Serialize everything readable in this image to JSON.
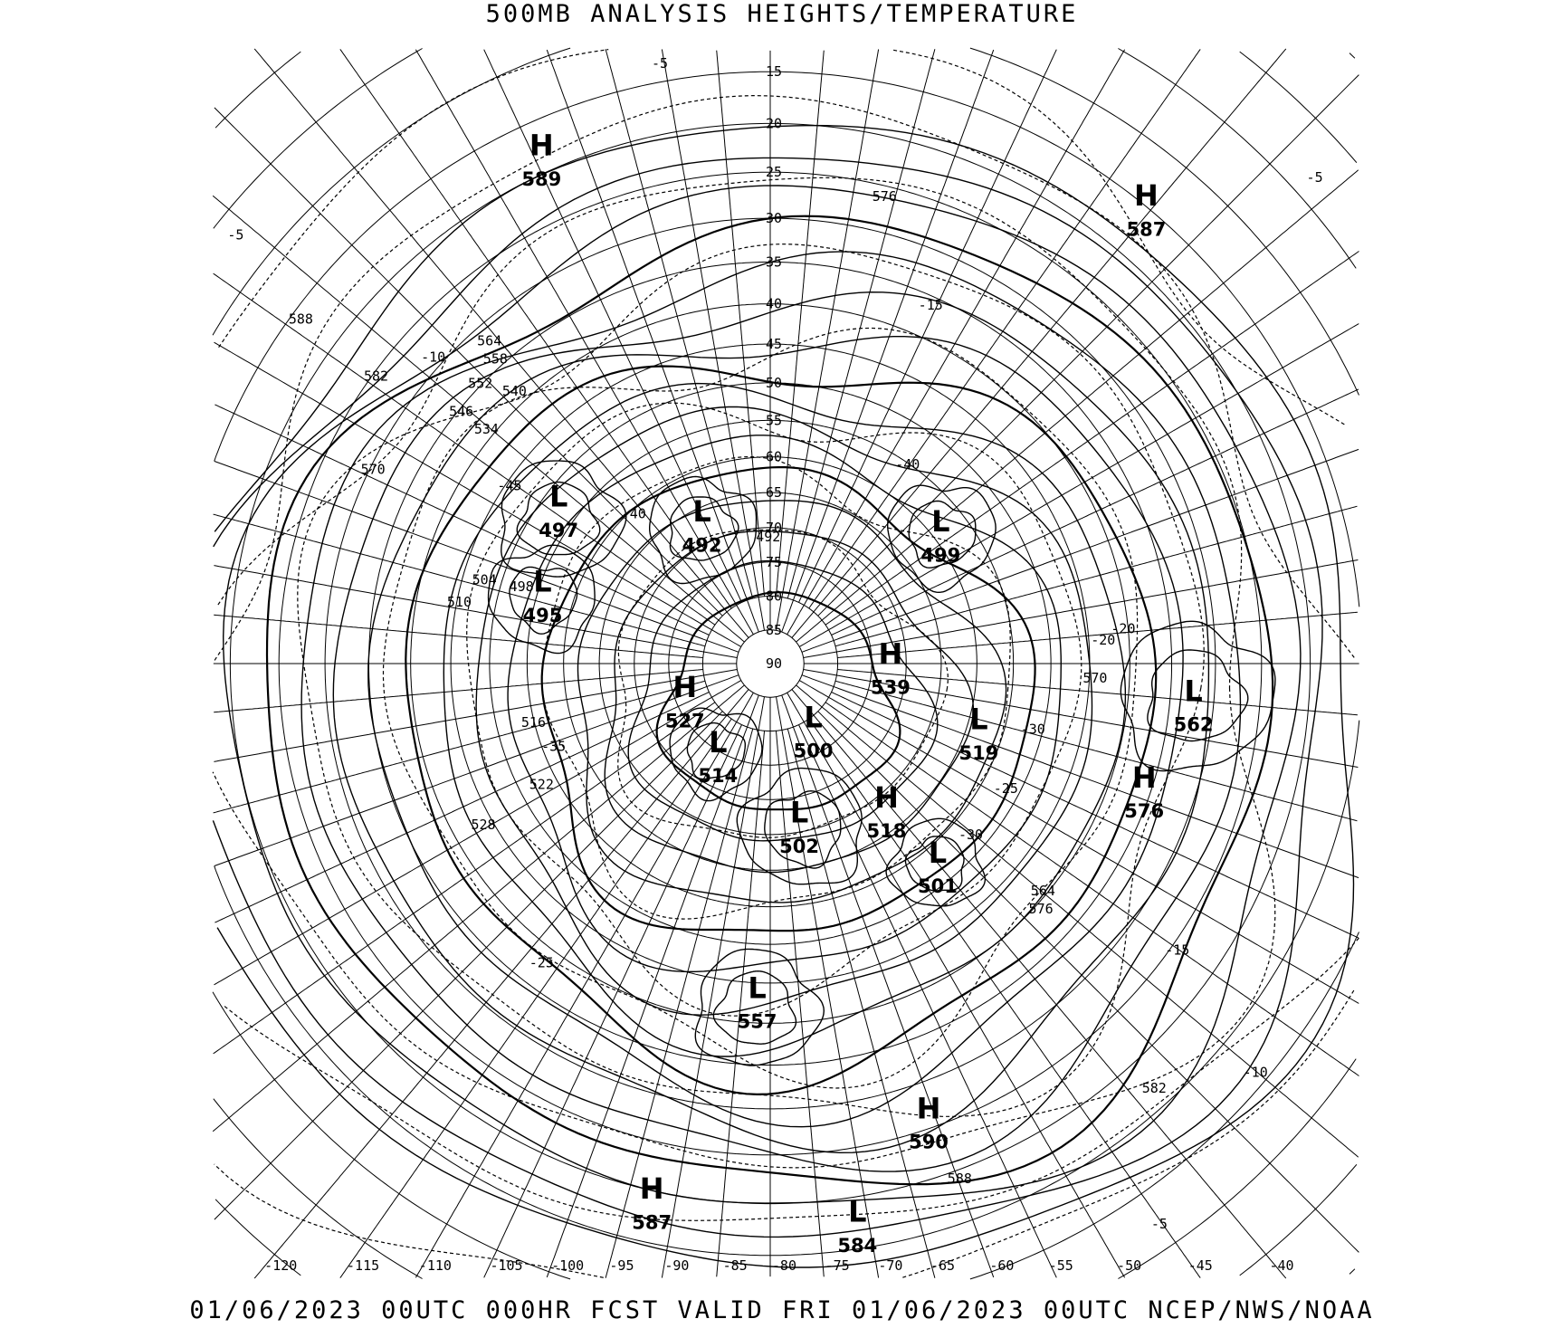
{
  "title": "500MB ANALYSIS  HEIGHTS/TEMPERATURE",
  "footer": "01/06/2023 00UTC 000HR FCST VALID FRI 01/06/2023 00UTC  NCEP/NWS/NOAA",
  "map": {
    "projection": "polar stereographic, north pole",
    "pole_label": "90",
    "latitude_labels": [
      "15",
      "20",
      "25",
      "30",
      "35",
      "40",
      "45",
      "50",
      "55",
      "60",
      "65",
      "70",
      "75",
      "80",
      "85"
    ],
    "longitude_labels": [
      "-120",
      "-115",
      "-110",
      "-105",
      "-100",
      "-95",
      "-90",
      "-85",
      "-80",
      "-75",
      "-70",
      "-65",
      "-60",
      "-55",
      "-50",
      "-45",
      "-40"
    ],
    "height_contour_style": "solid",
    "temperature_contour_style": "dashed",
    "pressure_centers": [
      {
        "type": "H",
        "value": "589"
      },
      {
        "type": "H",
        "value": "587"
      },
      {
        "type": "L",
        "value": "497"
      },
      {
        "type": "L",
        "value": "492"
      },
      {
        "type": "L",
        "value": "499"
      },
      {
        "type": "L",
        "value": "495"
      },
      {
        "type": "H",
        "value": "539"
      },
      {
        "type": "H",
        "value": "527"
      },
      {
        "type": "L",
        "value": "500"
      },
      {
        "type": "L",
        "value": "519"
      },
      {
        "type": "L",
        "value": "562"
      },
      {
        "type": "L",
        "value": "514"
      },
      {
        "type": "H",
        "value": "576"
      },
      {
        "type": "H",
        "value": "518"
      },
      {
        "type": "L",
        "value": "502"
      },
      {
        "type": "L",
        "value": "501"
      },
      {
        "type": "L",
        "value": "557"
      },
      {
        "type": "H",
        "value": "590"
      },
      {
        "type": "H",
        "value": "587"
      },
      {
        "type": "L",
        "value": "584"
      }
    ],
    "contour_labels": [
      "588",
      "576",
      "564",
      "558",
      "552",
      "540",
      "546",
      "534",
      "582",
      "570",
      "528",
      "522",
      "516",
      "510",
      "504",
      "498",
      "492",
      "582",
      "588",
      "576",
      "564",
      "570",
      "-5",
      "-5",
      "-5",
      "-10",
      "-15",
      "-20",
      "-25",
      "-30",
      "-35",
      "-40",
      "-45",
      "-10",
      "-15",
      "-5",
      "-25",
      "-20",
      "-30",
      "-40"
    ]
  }
}
